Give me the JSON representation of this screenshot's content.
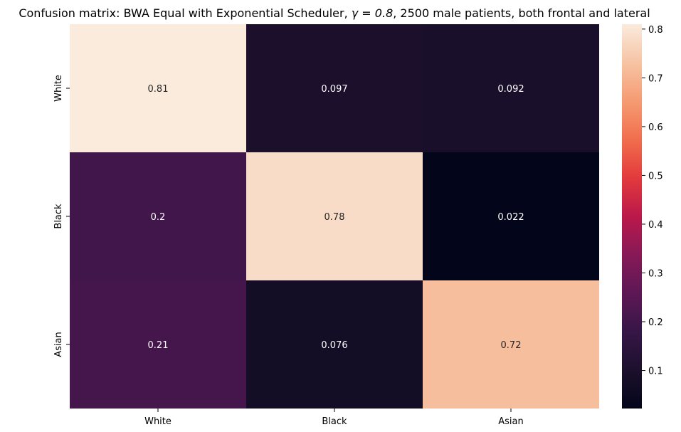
{
  "chart_data": {
    "type": "heatmap",
    "title_prefix": "Confusion matrix: BWA Equal with Exponential Scheduler, ",
    "title_gamma": "γ = 0.8",
    "title_suffix": ", 2500 male patients, both frontal and lateral",
    "x_categories": [
      "White",
      "Black",
      "Asian"
    ],
    "y_categories": [
      "White",
      "Black",
      "Asian"
    ],
    "values": [
      [
        0.81,
        0.097,
        0.092
      ],
      [
        0.2,
        0.78,
        0.022
      ],
      [
        0.21,
        0.076,
        0.72
      ]
    ],
    "value_labels": [
      [
        "0.81",
        "0.097",
        "0.092"
      ],
      [
        "0.2",
        "0.78",
        "0.022"
      ],
      [
        "0.21",
        "0.076",
        "0.72"
      ]
    ],
    "colormap": "rocket",
    "vmin": 0.022,
    "vmax": 0.81,
    "colorbar_ticks": [
      0.1,
      0.2,
      0.3,
      0.4,
      0.5,
      0.6,
      0.7,
      0.8
    ],
    "colorbar_tick_labels": [
      "0.1",
      "0.2",
      "0.3",
      "0.4",
      "0.5",
      "0.6",
      "0.7",
      "0.8"
    ],
    "colorbar_position": "right"
  }
}
